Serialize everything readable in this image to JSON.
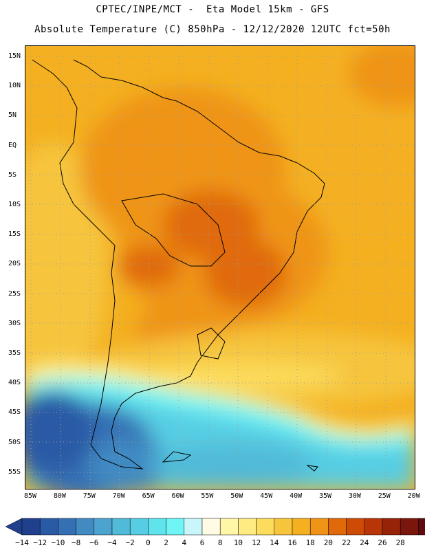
{
  "header": {
    "line1": "CPTEC/INPE/MCT -  Eta Model 15km - GFS",
    "line2": "Absolute Temperature (C) 850hPa - 12/12/2020 12UTC fct=50h"
  },
  "map": {
    "lat_labels": [
      "15N",
      "10N",
      "5N",
      "EQ",
      "5S",
      "10S",
      "15S",
      "20S",
      "25S",
      "30S",
      "35S",
      "40S",
      "45S",
      "50S",
      "55S"
    ],
    "lon_labels": [
      "85W",
      "80W",
      "75W",
      "70W",
      "65W",
      "60W",
      "55W",
      "50W",
      "45W",
      "40W",
      "35W",
      "30W",
      "25W",
      "20W"
    ]
  },
  "colorbar": {
    "labels": [
      "-14",
      "-12",
      "-10",
      "-8",
      "-6",
      "-4",
      "-2",
      "0",
      "2",
      "4",
      "6",
      "8",
      "10",
      "12",
      "14",
      "16",
      "18",
      "20",
      "22",
      "24",
      "26",
      "28"
    ],
    "colors": [
      "#20408e",
      "#2a5aa5",
      "#3670b4",
      "#418ac2",
      "#4ca3cd",
      "#51bad8",
      "#57cde3",
      "#5fe3ec",
      "#6ff5f5",
      "#c9f6fb",
      "#fffbe4",
      "#fff6a8",
      "#ffeb82",
      "#fcdc5c",
      "#f6c53c",
      "#f4b020",
      "#ef9416",
      "#e06a0a",
      "#ce4b06",
      "#b83507",
      "#962208",
      "#7a160b",
      "#620b0e",
      "#7a0030"
    ],
    "min_color": "#20408e",
    "max_color": "#7a0030"
  }
}
